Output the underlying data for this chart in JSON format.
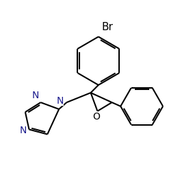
{
  "bg_color": "#ffffff",
  "line_color": "#000000",
  "bond_width": 1.5,
  "font_size_label": 10,
  "figsize": [
    2.82,
    2.49
  ],
  "dpi": 100,
  "br_label": "Br",
  "o_label": "O",
  "n_labels": [
    "N",
    "N",
    "N"
  ]
}
